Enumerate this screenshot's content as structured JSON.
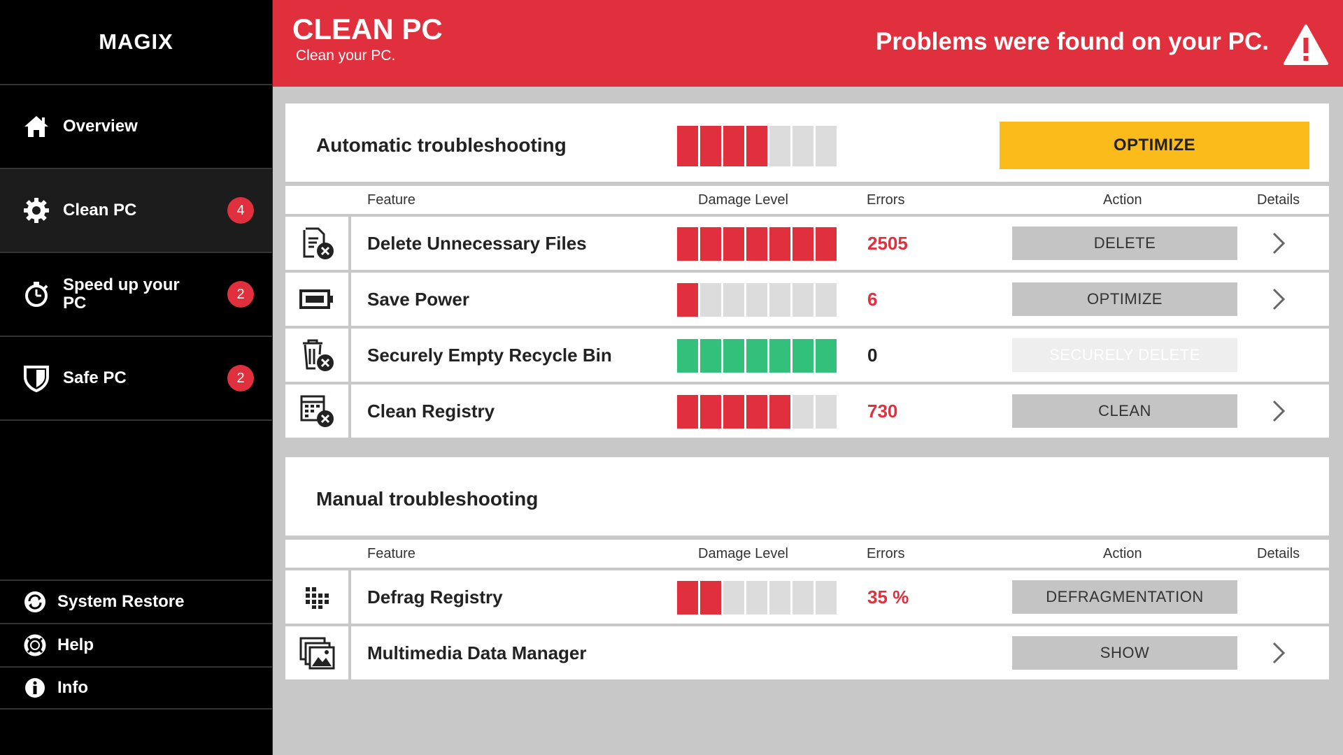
{
  "app": {
    "logo": "MAGIX"
  },
  "sidebar": {
    "items": [
      {
        "label": "Overview",
        "icon": "home-icon"
      },
      {
        "label": "Clean PC",
        "icon": "gear-icon",
        "badge": "4",
        "active": true
      },
      {
        "label": "Speed up your PC",
        "icon": "stopwatch-icon",
        "badge": "2"
      },
      {
        "label": "Safe PC",
        "icon": "shield-icon",
        "badge": "2"
      }
    ],
    "bottom": [
      {
        "label": "System Restore",
        "icon": "restore-icon"
      },
      {
        "label": "Help",
        "icon": "lifebuoy-icon"
      },
      {
        "label": "Info",
        "icon": "info-icon"
      }
    ]
  },
  "header": {
    "title": "CLEAN PC",
    "subtitle": "Clean your PC.",
    "alert": "Problems were found on your PC.",
    "alert_icon": "warning-icon"
  },
  "columns": {
    "feature": "Feature",
    "damage": "Damage Level",
    "errors": "Errors",
    "action": "Action",
    "details": "Details"
  },
  "automatic": {
    "title": "Automatic troubleshooting",
    "damage_level": {
      "filled": 4,
      "total": 7
    },
    "button": "OPTIMIZE",
    "rows": [
      {
        "icon": "delete-files-icon",
        "feature": "Delete Unnecessary Files",
        "damage_level": {
          "filled": 7,
          "total": 7,
          "color": "red"
        },
        "errors": "2505",
        "action": "DELETE",
        "details": true
      },
      {
        "icon": "battery-icon",
        "feature": "Save Power",
        "damage_level": {
          "filled": 1,
          "total": 7,
          "color": "red"
        },
        "errors": "6",
        "action": "OPTIMIZE",
        "details": true
      },
      {
        "icon": "recycle-bin-icon",
        "feature": "Securely Empty Recycle Bin",
        "damage_level": {
          "filled": 7,
          "total": 7,
          "color": "green"
        },
        "errors": "0",
        "action": "SECURELY DELETE",
        "action_disabled": true,
        "details": false
      },
      {
        "icon": "registry-icon",
        "feature": "Clean Registry",
        "damage_level": {
          "filled": 5,
          "total": 7,
          "color": "red"
        },
        "errors": "730",
        "action": "CLEAN",
        "details": true
      }
    ]
  },
  "manual": {
    "title": "Manual troubleshooting",
    "rows": [
      {
        "icon": "defrag-icon",
        "feature": "Defrag Registry",
        "damage_level": {
          "filled": 2,
          "total": 7,
          "color": "red"
        },
        "errors": "35 %",
        "action": "DEFRAGMENTATION",
        "details": false
      },
      {
        "icon": "multimedia-icon",
        "feature": "Multimedia Data Manager",
        "errors": "",
        "action": "SHOW",
        "details": true
      }
    ]
  },
  "colors": {
    "red": "#e0303d",
    "yellow": "#fbbc1b",
    "green": "#33c07a",
    "gray": "#c4c4c4"
  }
}
